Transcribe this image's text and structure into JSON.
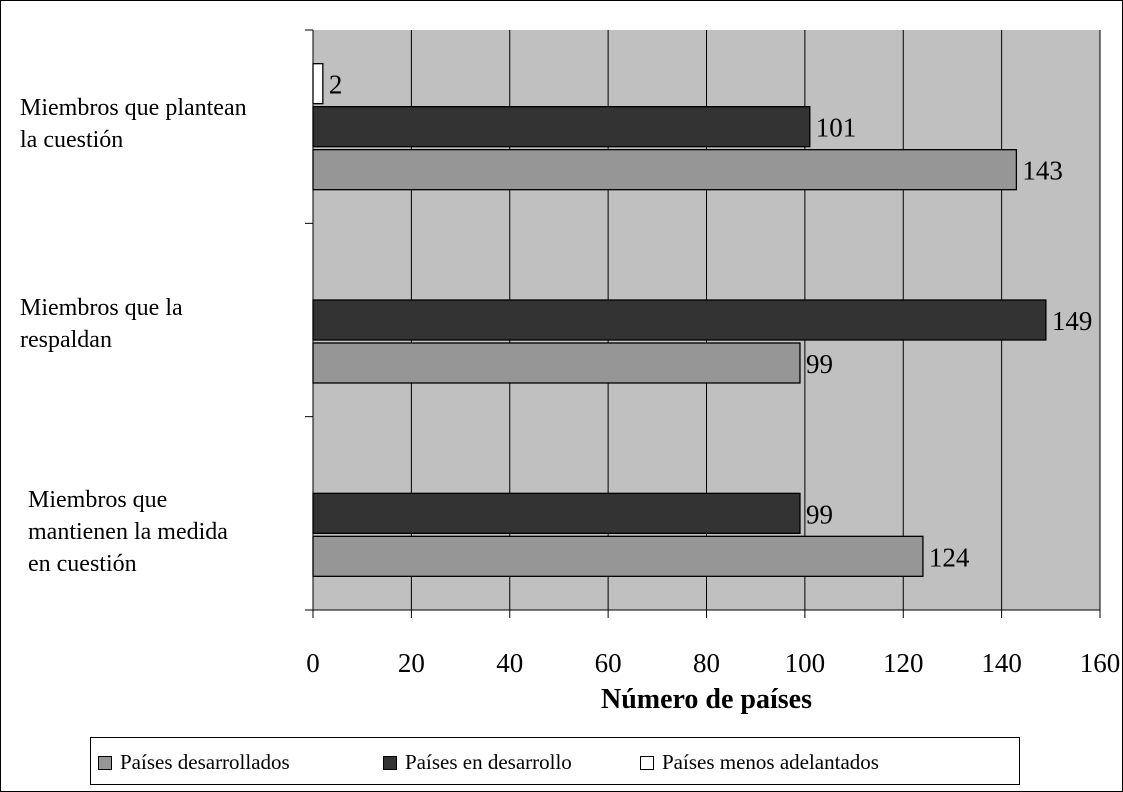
{
  "chart_data": {
    "type": "bar",
    "orientation": "horizontal",
    "categories": [
      [
        "Miembros que plantean",
        "la cuestión"
      ],
      [
        "Miembros que la",
        "respaldan"
      ],
      [
        "Miembros que",
        "mantienen la medida",
        "en cuestión"
      ]
    ],
    "series": [
      {
        "name": "Países desarrollados",
        "color": "#969696",
        "values": [
          143,
          99,
          124
        ]
      },
      {
        "name": "Países en desarrollo",
        "color": "#333333",
        "values": [
          101,
          149,
          99
        ]
      },
      {
        "name": "Países menos adelantados",
        "color": "#ffffff",
        "values": [
          2,
          null,
          null
        ]
      }
    ],
    "xlabel": "Número de países",
    "xlim": [
      0,
      160
    ],
    "xticks": [
      0,
      20,
      40,
      60,
      80,
      100,
      120,
      140,
      160
    ],
    "grid": true,
    "plot_background": "#c0c0c0",
    "legend_position": "bottom"
  }
}
